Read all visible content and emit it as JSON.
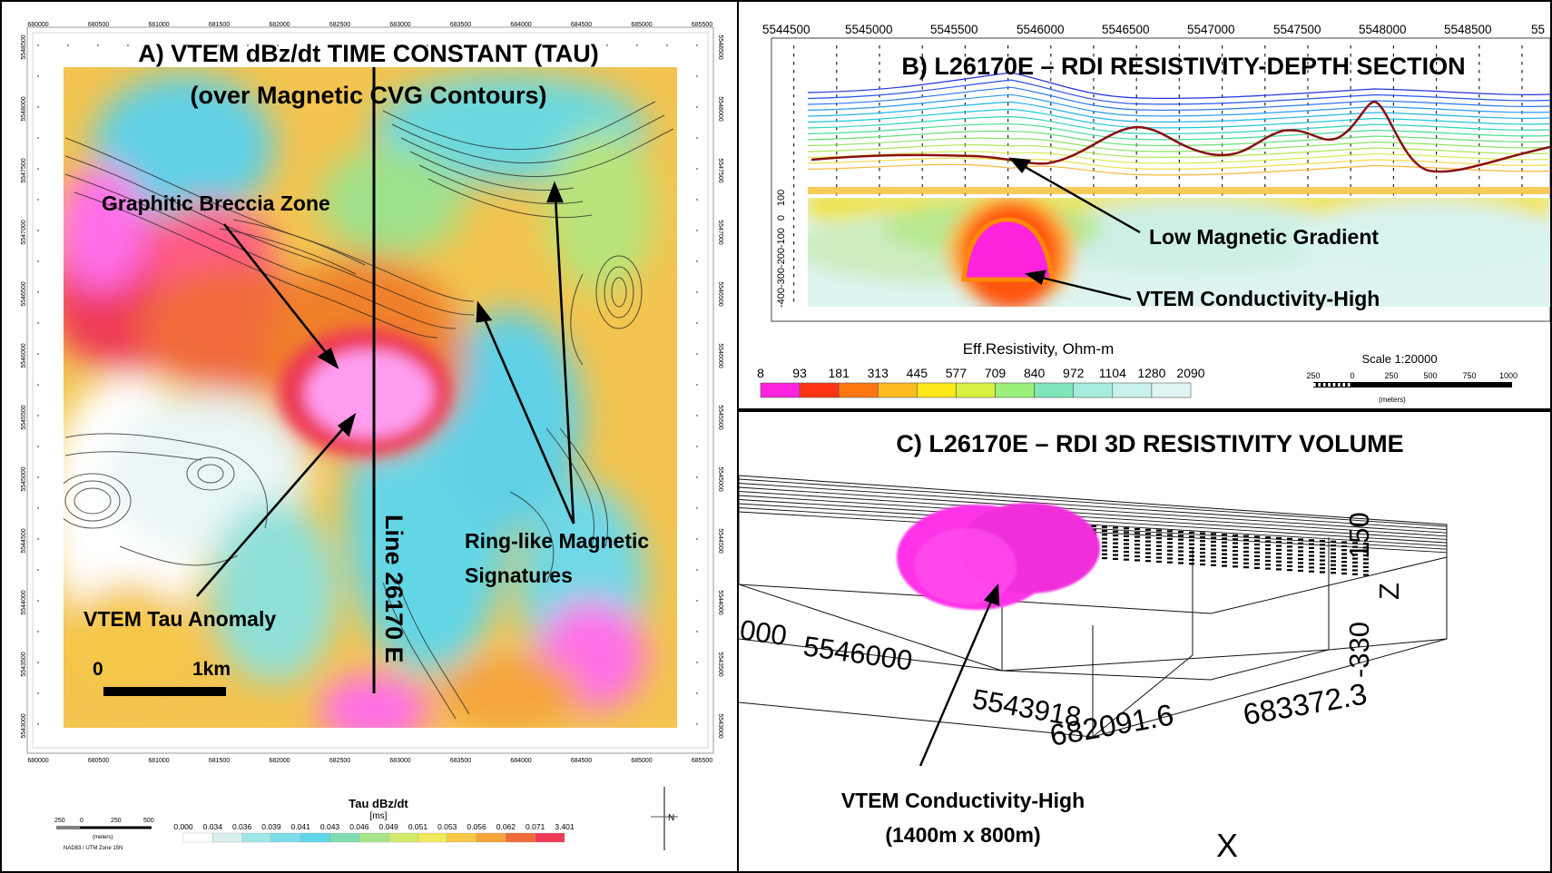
{
  "panelA": {
    "title": "A) VTEM dBz/dt TIME CONSTANT (TAU)",
    "subtitle": "(over Magnetic CVG Contours)",
    "labels": {
      "breccia": "Graphitic Breccia Zone",
      "tau_anomaly": "VTEM Tau Anomaly",
      "ring_1": "Ring-like Magnetic",
      "ring_2": "Signatures",
      "line": "Line 26170 E",
      "scale_zero": "0",
      "scale_km": "1km"
    },
    "easting_ticks": [
      "680000",
      "680500",
      "681000",
      "681500",
      "682000",
      "682500",
      "683000",
      "683500",
      "684000",
      "684500",
      "685000",
      "685500"
    ],
    "northing_ticks": [
      "5548500",
      "5548000",
      "5547500",
      "5547000",
      "5546500",
      "5546000",
      "5545500",
      "5545000",
      "5544500",
      "5544000",
      "5543500",
      "5543000"
    ],
    "legend": {
      "title": "Tau dBz/dt",
      "unit": "[ms]",
      "values": [
        "0.000",
        "0.034",
        "0.036",
        "0.039",
        "0.041",
        "0.043",
        "0.046",
        "0.049",
        "0.051",
        "0.053",
        "0.056",
        "0.062",
        "0.071",
        "3.401"
      ],
      "colors": [
        "#ffffff",
        "#d9f0f0",
        "#9fe6e6",
        "#7ddde8",
        "#5fd6ea",
        "#7fdcb0",
        "#a8e48a",
        "#d2ea6a",
        "#f1e85a",
        "#f7c845",
        "#f5a33a",
        "#f06a3a",
        "#ee3a55",
        "#ff6ee8"
      ]
    },
    "scale_bar": {
      "ticks": [
        "250",
        "0",
        "250",
        "500"
      ],
      "unit": "(meters)",
      "projection": "NAD83 / UTM Zone 15N"
    },
    "north": "N"
  },
  "panelB": {
    "title": "B) L26170E – RDI RESISTIVITY-DEPTH SECTION",
    "x_ticks": [
      "5544500",
      "5545000",
      "5545500",
      "5546000",
      "5546500",
      "5547000",
      "5547500",
      "5548000",
      "5548500",
      "55"
    ],
    "y_ticks": [
      "100",
      "0",
      "-100",
      "-200",
      "-300",
      "-400"
    ],
    "labels": {
      "low_mag": "Low Magnetic Gradient",
      "vtem_high": "VTEM Conductivity-High"
    },
    "legend": {
      "title": "Eff.Resistivity, Ohm-m",
      "values": [
        "8",
        "93",
        "181",
        "313",
        "445",
        "577",
        "709",
        "840",
        "972",
        "1104",
        "1280",
        "2090"
      ],
      "colors": [
        "#ff22dd",
        "#ff3311",
        "#ff7711",
        "#ffbb22",
        "#ffe81a",
        "#d8f040",
        "#9af07a",
        "#7ee6b8",
        "#a8ecdf",
        "#c8f2ec",
        "#dff6f4",
        "#eef9f8"
      ]
    },
    "scale": {
      "title": "Scale 1:20000",
      "ticks": [
        "250",
        "0",
        "250",
        "500",
        "750",
        "1000"
      ],
      "unit": "(meters)"
    },
    "colors": {
      "mag_profile": "#8b1010"
    }
  },
  "panelC": {
    "title": "C) L26170E – RDI 3D RESISTIVITY VOLUME",
    "axis_labels": {
      "north_left": "000",
      "north_1": "5546000",
      "north_2": "5543918",
      "east_1": "682091.6",
      "east_2": "683372.3",
      "z_top": "150",
      "z_bottom": "-330",
      "z": "Z",
      "x": "X"
    },
    "labels": {
      "vtem_high": "VTEM Conductivity-High",
      "dimensions": "(1400m x 800m)"
    },
    "colors": {
      "body": "#ff33e8"
    }
  }
}
